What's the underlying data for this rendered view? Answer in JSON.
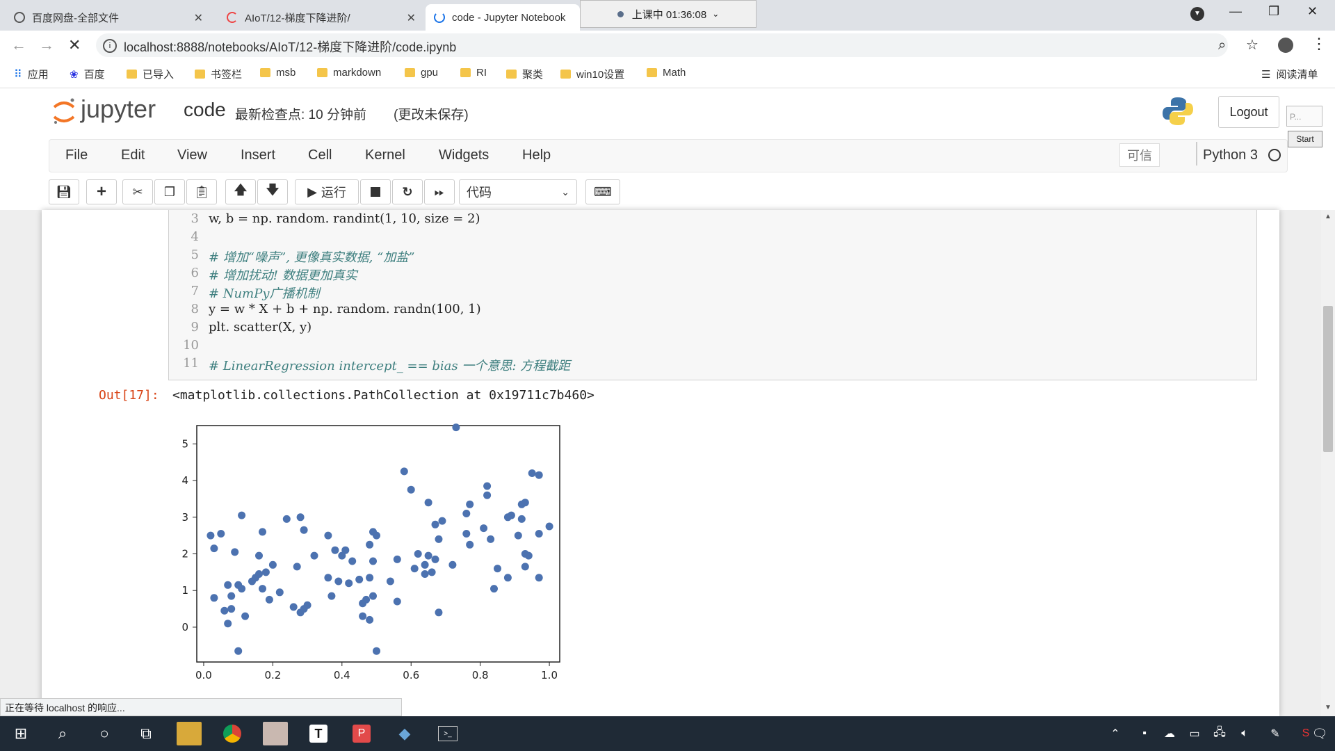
{
  "browser": {
    "tabs": [
      {
        "title": "百度网盘-全部文件"
      },
      {
        "title": "AIoT/12-梯度下降进阶/"
      },
      {
        "title": "code - Jupyter Notebook"
      }
    ],
    "recording": "上课中 01:36:08",
    "url": "localhost:8888/notebooks/AIoT/12-梯度下降进阶/code.ipynb",
    "bookmarks": [
      "应用",
      "百度",
      "已导入",
      "书签栏",
      "msb",
      "markdown",
      "gpu",
      "RI",
      "聚类",
      "win10设置",
      "Math"
    ],
    "reading_list": "阅读清单",
    "status_text": "正在等待 localhost 的响应..."
  },
  "jupyter": {
    "logo_text": "jupyter",
    "notebook_name": "code",
    "checkpoint": "最新检查点: 10 分钟前",
    "unsaved": "(更改未保存)",
    "logout": "Logout",
    "side_widget": "P...",
    "side_start": "Start",
    "menus": [
      "File",
      "Edit",
      "View",
      "Insert",
      "Cell",
      "Kernel",
      "Widgets",
      "Help"
    ],
    "trusted": "可信",
    "kernel": "Python 3",
    "run_label": "运行",
    "cell_type": "代码"
  },
  "cell": {
    "lines": [
      {
        "n": "3",
        "code": "w, b = np. random. randint(1, 10, size = 2)",
        "comment": false
      },
      {
        "n": "4",
        "code": "",
        "comment": false
      },
      {
        "n": "5",
        "code": "# 增加“噪声”, 更像真实数据, “加盐”",
        "comment": true
      },
      {
        "n": "6",
        "code": "# 增加扰动! 数据更加真实",
        "comment": true
      },
      {
        "n": "7",
        "code": "# NumPy广播机制",
        "comment": true
      },
      {
        "n": "8",
        "code": "y = w * X + b + np. random. randn(100, 1)",
        "comment": false
      },
      {
        "n": "9",
        "code": "plt. scatter(X, y)",
        "comment": false
      },
      {
        "n": "10",
        "code": "",
        "comment": false
      },
      {
        "n": "11",
        "code": "# LinearRegression intercept_ == bias 一个意思: 方程截距",
        "comment": true
      }
    ],
    "out_prompt": "Out[17]:",
    "out_text": "<matplotlib.collections.PathCollection at 0x19711c7b460>"
  },
  "colors": {
    "point": "#4c72b0",
    "jupyter_orange": "#f37626"
  },
  "chart_data": {
    "type": "scatter",
    "xlim": [
      -0.02,
      1.03
    ],
    "ylim": [
      -0.95,
      5.5
    ],
    "xticks": [
      "0.0",
      "0.2",
      "0.4",
      "0.6",
      "0.8",
      "1.0"
    ],
    "yticks": [
      "0",
      "1",
      "2",
      "3",
      "4",
      "5"
    ],
    "grid": false,
    "points": [
      [
        0.02,
        2.5
      ],
      [
        0.03,
        0.8
      ],
      [
        0.03,
        2.15
      ],
      [
        0.05,
        2.55
      ],
      [
        0.06,
        0.45
      ],
      [
        0.07,
        1.15
      ],
      [
        0.07,
        0.1
      ],
      [
        0.08,
        0.5
      ],
      [
        0.08,
        0.85
      ],
      [
        0.09,
        2.05
      ],
      [
        0.1,
        -0.65
      ],
      [
        0.1,
        1.15
      ],
      [
        0.11,
        3.05
      ],
      [
        0.11,
        1.05
      ],
      [
        0.12,
        0.3
      ],
      [
        0.14,
        1.25
      ],
      [
        0.15,
        1.35
      ],
      [
        0.16,
        1.45
      ],
      [
        0.16,
        1.95
      ],
      [
        0.17,
        1.05
      ],
      [
        0.17,
        2.6
      ],
      [
        0.18,
        1.5
      ],
      [
        0.19,
        0.75
      ],
      [
        0.2,
        1.7
      ],
      [
        0.22,
        0.95
      ],
      [
        0.24,
        2.95
      ],
      [
        0.26,
        0.55
      ],
      [
        0.27,
        1.65
      ],
      [
        0.28,
        3.0
      ],
      [
        0.28,
        0.4
      ],
      [
        0.29,
        2.65
      ],
      [
        0.29,
        0.5
      ],
      [
        0.3,
        0.6
      ],
      [
        0.32,
        1.95
      ],
      [
        0.36,
        2.5
      ],
      [
        0.36,
        1.35
      ],
      [
        0.37,
        0.85
      ],
      [
        0.38,
        2.1
      ],
      [
        0.39,
        1.25
      ],
      [
        0.4,
        1.95
      ],
      [
        0.41,
        2.1
      ],
      [
        0.42,
        1.2
      ],
      [
        0.43,
        1.8
      ],
      [
        0.45,
        1.3
      ],
      [
        0.46,
        0.65
      ],
      [
        0.46,
        0.3
      ],
      [
        0.47,
        0.75
      ],
      [
        0.48,
        2.25
      ],
      [
        0.48,
        0.2
      ],
      [
        0.48,
        1.35
      ],
      [
        0.49,
        2.6
      ],
      [
        0.49,
        0.85
      ],
      [
        0.49,
        1.8
      ],
      [
        0.5,
        2.5
      ],
      [
        0.5,
        -0.65
      ],
      [
        0.54,
        1.25
      ],
      [
        0.56,
        0.7
      ],
      [
        0.56,
        1.85
      ],
      [
        0.58,
        4.25
      ],
      [
        0.6,
        3.75
      ],
      [
        0.61,
        1.6
      ],
      [
        0.62,
        2.0
      ],
      [
        0.64,
        1.7
      ],
      [
        0.64,
        1.45
      ],
      [
        0.65,
        1.95
      ],
      [
        0.65,
        3.4
      ],
      [
        0.66,
        1.5
      ],
      [
        0.67,
        1.85
      ],
      [
        0.67,
        2.8
      ],
      [
        0.68,
        2.4
      ],
      [
        0.68,
        0.4
      ],
      [
        0.69,
        2.9
      ],
      [
        0.72,
        1.7
      ],
      [
        0.73,
        5.45
      ],
      [
        0.76,
        3.1
      ],
      [
        0.76,
        2.55
      ],
      [
        0.77,
        3.35
      ],
      [
        0.77,
        2.25
      ],
      [
        0.81,
        2.7
      ],
      [
        0.82,
        3.85
      ],
      [
        0.82,
        3.6
      ],
      [
        0.83,
        2.4
      ],
      [
        0.84,
        1.05
      ],
      [
        0.85,
        1.6
      ],
      [
        0.88,
        3.0
      ],
      [
        0.88,
        1.35
      ],
      [
        0.89,
        3.05
      ],
      [
        0.91,
        2.5
      ],
      [
        0.92,
        3.35
      ],
      [
        0.92,
        2.95
      ],
      [
        0.93,
        3.4
      ],
      [
        0.93,
        2.0
      ],
      [
        0.93,
        1.65
      ],
      [
        0.94,
        1.95
      ],
      [
        0.95,
        4.2
      ],
      [
        0.97,
        4.15
      ],
      [
        0.97,
        2.55
      ],
      [
        0.97,
        1.35
      ],
      [
        1.0,
        2.75
      ]
    ]
  }
}
